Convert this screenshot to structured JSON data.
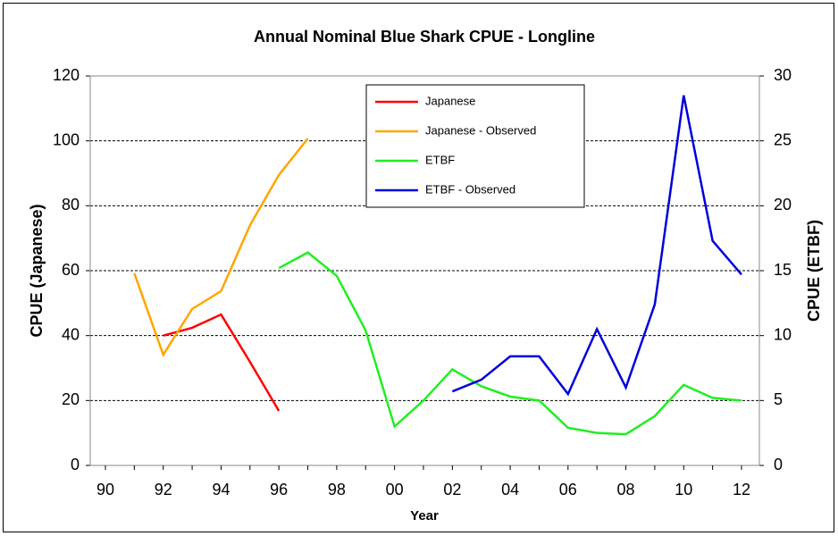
{
  "chart_data": {
    "type": "line",
    "title": "Annual Nominal Blue Shark CPUE - Longline",
    "x_label": "Year",
    "y_label": "CPUE (Japanese)",
    "y2_label": "CPUE (ETBF)",
    "categories": [
      "90",
      null,
      "92",
      null,
      "94",
      null,
      "96",
      null,
      "98",
      null,
      "00",
      null,
      "02",
      null,
      "04",
      null,
      "06",
      null,
      "08",
      null,
      "10",
      null,
      "12"
    ],
    "series": [
      {
        "name": "Japanese",
        "color": "#ff0000",
        "values": [
          null,
          null,
          40,
          42.4,
          46.5,
          31.9,
          16.8,
          null,
          null,
          null,
          null,
          null,
          null,
          null,
          null,
          null,
          null,
          null,
          null,
          null,
          null,
          null,
          null
        ]
      },
      {
        "name": "Japanese - Observed",
        "color": "#ffa500",
        "values": [
          null,
          59.2,
          34.1,
          48.2,
          53.7,
          74,
          89.5,
          100.7,
          null,
          null,
          null,
          null,
          null,
          null,
          null,
          null,
          null,
          null,
          null,
          null,
          null,
          null,
          null
        ]
      },
      {
        "name": "ETBF",
        "color": "#22ee22",
        "axis": "y2",
        "values": [
          null,
          null,
          null,
          null,
          null,
          null,
          15.2,
          16.4,
          14.6,
          10.4,
          3.0,
          5.0,
          7.4,
          6.1,
          5.3,
          5.0,
          2.9,
          2.5,
          2.4,
          3.8,
          6.2,
          5.2,
          5.0
        ]
      },
      {
        "name": "ETBF - Observed",
        "color": "#0000dd",
        "axis": "y2",
        "values": [
          null,
          null,
          null,
          null,
          null,
          null,
          null,
          null,
          null,
          null,
          null,
          null,
          5.7,
          6.6,
          8.4,
          8.4,
          5.5,
          10.5,
          6.0,
          12.4,
          28.5,
          17.3,
          14.7
        ]
      }
    ],
    "ylim": [
      0,
      120
    ],
    "yticks": [
      0,
      20,
      40,
      60,
      80,
      100,
      120
    ],
    "y2lim": [
      0,
      30
    ],
    "y2ticks": [
      0,
      5,
      10,
      15,
      20,
      25,
      30
    ],
    "grid": true
  }
}
